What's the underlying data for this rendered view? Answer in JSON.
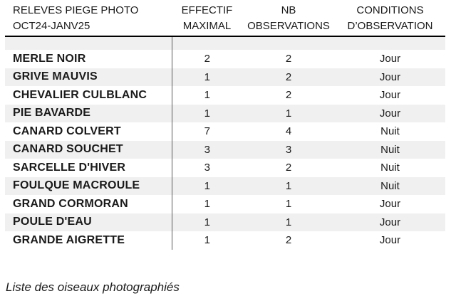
{
  "table": {
    "header": {
      "col1_line1": "RELEVES PIEGE PHOTO",
      "col1_line2": "OCT24-JANV25",
      "col2_line1": "EFFECTIF",
      "col2_line2": "MAXIMAL",
      "col3_line1": "NB",
      "col3_line2": "OBSERVATIONS",
      "col4_line1": "CONDITIONS",
      "col4_line2": "D’OBSERVATION"
    },
    "rows": [
      {
        "name": "MERLE NOIR",
        "effectif": "2",
        "nb": "2",
        "conditions": "Jour"
      },
      {
        "name": "GRIVE MAUVIS",
        "effectif": "1",
        "nb": "2",
        "conditions": "Jour"
      },
      {
        "name": "CHEVALIER CULBLANC",
        "effectif": "1",
        "nb": "2",
        "conditions": "Jour"
      },
      {
        "name": "PIE BAVARDE",
        "effectif": "1",
        "nb": "1",
        "conditions": "Jour"
      },
      {
        "name": "CANARD COLVERT",
        "effectif": "7",
        "nb": "4",
        "conditions": "Nuit"
      },
      {
        "name": "CANARD SOUCHET",
        "effectif": "3",
        "nb": "3",
        "conditions": "Nuit"
      },
      {
        "name": "SARCELLE D'HIVER",
        "effectif": "3",
        "nb": "2",
        "conditions": "Nuit"
      },
      {
        "name": "FOULQUE MACROULE",
        "effectif": "1",
        "nb": "1",
        "conditions": "Nuit"
      },
      {
        "name": "GRAND CORMORAN",
        "effectif": "1",
        "nb": "1",
        "conditions": "Jour"
      },
      {
        "name": "POULE D'EAU",
        "effectif": "1",
        "nb": "1",
        "conditions": "Jour"
      },
      {
        "name": "GRANDE AIGRETTE",
        "effectif": "1",
        "nb": "2",
        "conditions": "Jour"
      }
    ]
  },
  "caption": "Liste des oiseaux photographiés",
  "colors": {
    "band": "#f0f0f0",
    "divider": "#595959",
    "rule": "#000000",
    "text": "#1a1a1a"
  }
}
